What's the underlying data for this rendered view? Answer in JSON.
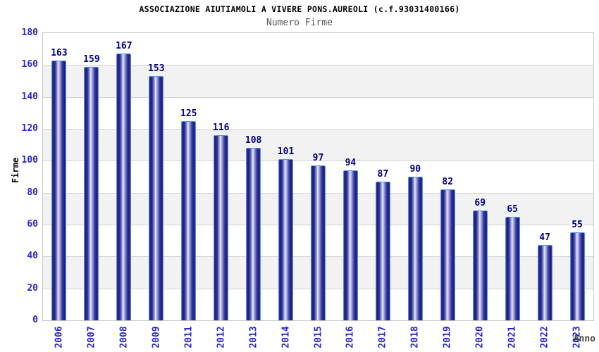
{
  "chart_data": {
    "type": "bar",
    "title": "ASSOCIAZIONE AIUTIAMOLI A VIVERE PONS.AUREOLI (c.f.93031400166)",
    "subtitle": "Numero Firme",
    "xlabel": "Anno",
    "ylabel": "Firme",
    "categories": [
      "2006",
      "2007",
      "2008",
      "2009",
      "2011",
      "2012",
      "2013",
      "2014",
      "2015",
      "2016",
      "2017",
      "2018",
      "2019",
      "2020",
      "2021",
      "2022",
      "2023"
    ],
    "values": [
      163,
      159,
      167,
      153,
      125,
      116,
      108,
      101,
      97,
      94,
      87,
      90,
      82,
      69,
      65,
      47,
      55
    ],
    "ylim": [
      0,
      180
    ],
    "yticks": [
      0,
      20,
      40,
      60,
      80,
      100,
      120,
      140,
      160,
      180
    ],
    "grid": true,
    "legend_position": "none",
    "colors": {
      "bar_edge_dark": "#1a1a78",
      "bar_mid": "#3a3aa0",
      "bar_highlight": "#e9ebfa",
      "bar_outline": "#4f93e8",
      "value_label": "#000080",
      "tick_label": "#2626cc",
      "band_fill": "#f2f2f2",
      "band_alt_fill": "#ffffff",
      "gridline": "#d4d4d4",
      "plot_border": "#c8c8c8",
      "title_color": "#000000",
      "subtitle_color": "#555555",
      "x_axis_title_color": "#4a4a4a",
      "background": "#ffffff"
    }
  }
}
